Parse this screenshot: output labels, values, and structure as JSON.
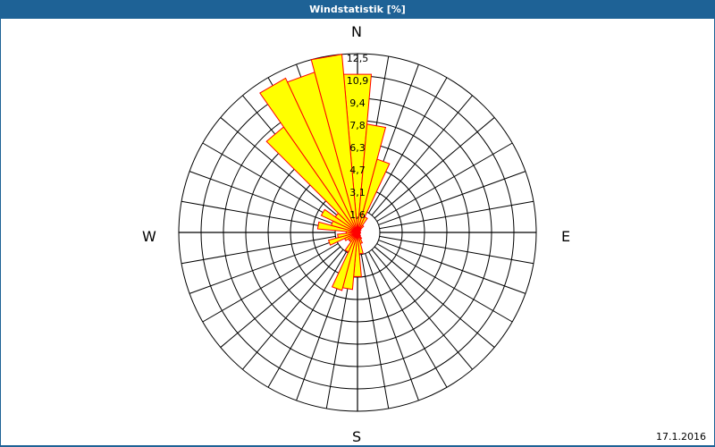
{
  "header": {
    "title": "Windstatistik [%]"
  },
  "footer": {
    "date": "17.1.2016"
  },
  "directions": {
    "north": "N",
    "east": "E",
    "south": "S",
    "west": "W"
  },
  "colors": {
    "title_bg": "#1e6296",
    "bar_fill": "#ffff00",
    "bar_stroke": "#ff0000",
    "grid": "#000000"
  },
  "chart_data": {
    "type": "wind-rose (polar bar)",
    "title": "Windstatistik [%]",
    "unit": "%",
    "radial_ticks": [
      "1,6",
      "3,1",
      "4,7",
      "6,3",
      "7,8",
      "9,4",
      "10,9",
      "12,5"
    ],
    "radial_max": 12.5,
    "sector_width_deg": 10,
    "direction_labels": [
      "N",
      "E",
      "S",
      "W"
    ],
    "sectors": [
      {
        "deg": 0,
        "value": 11.1
      },
      {
        "deg": 10,
        "value": 7.6
      },
      {
        "deg": 20,
        "value": 5.3
      },
      {
        "deg": 30,
        "value": 1.2
      },
      {
        "deg": 40,
        "value": 0.6
      },
      {
        "deg": 50,
        "value": 0.3
      },
      {
        "deg": 60,
        "value": 0.2
      },
      {
        "deg": 70,
        "value": 0.2
      },
      {
        "deg": 80,
        "value": 0.2
      },
      {
        "deg": 90,
        "value": 0.2
      },
      {
        "deg": 100,
        "value": 0.2
      },
      {
        "deg": 110,
        "value": 0.2
      },
      {
        "deg": 120,
        "value": 0.2
      },
      {
        "deg": 130,
        "value": 0.2
      },
      {
        "deg": 140,
        "value": 0.3
      },
      {
        "deg": 150,
        "value": 0.5
      },
      {
        "deg": 160,
        "value": 0.8
      },
      {
        "deg": 170,
        "value": 1.5
      },
      {
        "deg": 180,
        "value": 3.1
      },
      {
        "deg": 190,
        "value": 4.0
      },
      {
        "deg": 200,
        "value": 4.2
      },
      {
        "deg": 210,
        "value": 1.5
      },
      {
        "deg": 220,
        "value": 0.8
      },
      {
        "deg": 230,
        "value": 0.8
      },
      {
        "deg": 240,
        "value": 1.0
      },
      {
        "deg": 250,
        "value": 2.1
      },
      {
        "deg": 260,
        "value": 1.4
      },
      {
        "deg": 270,
        "value": 0.8
      },
      {
        "deg": 280,
        "value": 2.8
      },
      {
        "deg": 290,
        "value": 1.9
      },
      {
        "deg": 300,
        "value": 2.8
      },
      {
        "deg": 310,
        "value": 1.9
      },
      {
        "deg": 320,
        "value": 9.0
      },
      {
        "deg": 330,
        "value": 11.9
      },
      {
        "deg": 340,
        "value": 11.6
      },
      {
        "deg": 350,
        "value": 12.5
      }
    ]
  }
}
